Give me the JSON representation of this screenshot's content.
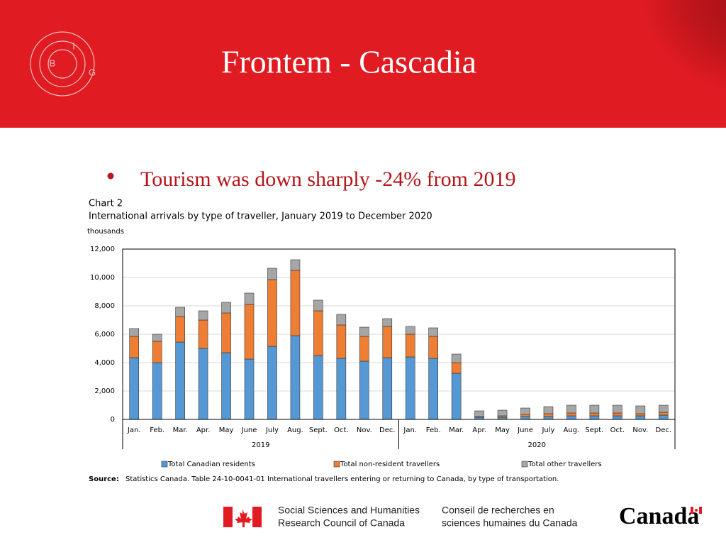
{
  "slide": {
    "title": "Frontem - Cascadia",
    "bullet": "Tourism was down sharply -24% from 2019",
    "logo_letters": [
      "B",
      "I",
      "G"
    ]
  },
  "chart_data": {
    "type": "stacked_bar",
    "title": "Chart 2",
    "subtitle": "International arrivals by type of traveller, January 2019 to December 2020",
    "y_label": "thousands",
    "categories": [
      "Jan.",
      "Feb.",
      "Mar.",
      "Apr.",
      "May",
      "June",
      "July",
      "Aug.",
      "Sept.",
      "Oct.",
      "Nov.",
      "Dec.",
      "Jan.",
      "Feb.",
      "Mar.",
      "Apr.",
      "May",
      "June",
      "July",
      "Aug.",
      "Sept.",
      "Oct.",
      "Nov.",
      "Dec."
    ],
    "x_groups": [
      "2019",
      "2020"
    ],
    "series": [
      {
        "name": "Total Canadian residents",
        "color": "#5698d3",
        "values": [
          4350,
          4000,
          5450,
          5000,
          4700,
          4250,
          5150,
          5900,
          4500,
          4300,
          4100,
          4350,
          4400,
          4300,
          3250,
          150,
          150,
          200,
          200,
          250,
          250,
          250,
          250,
          300
        ]
      },
      {
        "name": "Total non-resident travellers",
        "color": "#ee7e33",
        "values": [
          1500,
          1500,
          1800,
          2000,
          2800,
          3850,
          4700,
          4600,
          3150,
          2350,
          1750,
          2200,
          1600,
          1550,
          750,
          50,
          100,
          150,
          200,
          200,
          200,
          200,
          150,
          200
        ]
      },
      {
        "name": "Total other travellers",
        "color": "#a6a6a6",
        "values": [
          550,
          500,
          650,
          650,
          750,
          800,
          800,
          750,
          750,
          750,
          650,
          550,
          550,
          600,
          600,
          400,
          400,
          450,
          500,
          550,
          550,
          550,
          550,
          500
        ]
      }
    ],
    "ylim": [
      0,
      12000
    ],
    "yticks": [
      0,
      {
        "value": 2000,
        "label": "2,000"
      },
      {
        "value": 4000,
        "label": "4,000"
      },
      {
        "value": 6000,
        "label": "6,000"
      },
      {
        "value": 8000,
        "label": "8,000"
      },
      {
        "value": 10000,
        "label": "10,000"
      },
      {
        "value": 12000,
        "label": "12,000"
      }
    ],
    "grid": true,
    "source_label": "Source:",
    "source": "Statistics Canada. Table 24-10-0041-01 International travellers entering or returning to Canada, by type of transportation."
  },
  "footer": {
    "en_line1": "Social Sciences and Humanities",
    "en_line2": "Research Council of Canada",
    "fr_line1": "Conseil de recherches en",
    "fr_line2": "sciences humaines du Canada",
    "wordmark": "Canada"
  }
}
